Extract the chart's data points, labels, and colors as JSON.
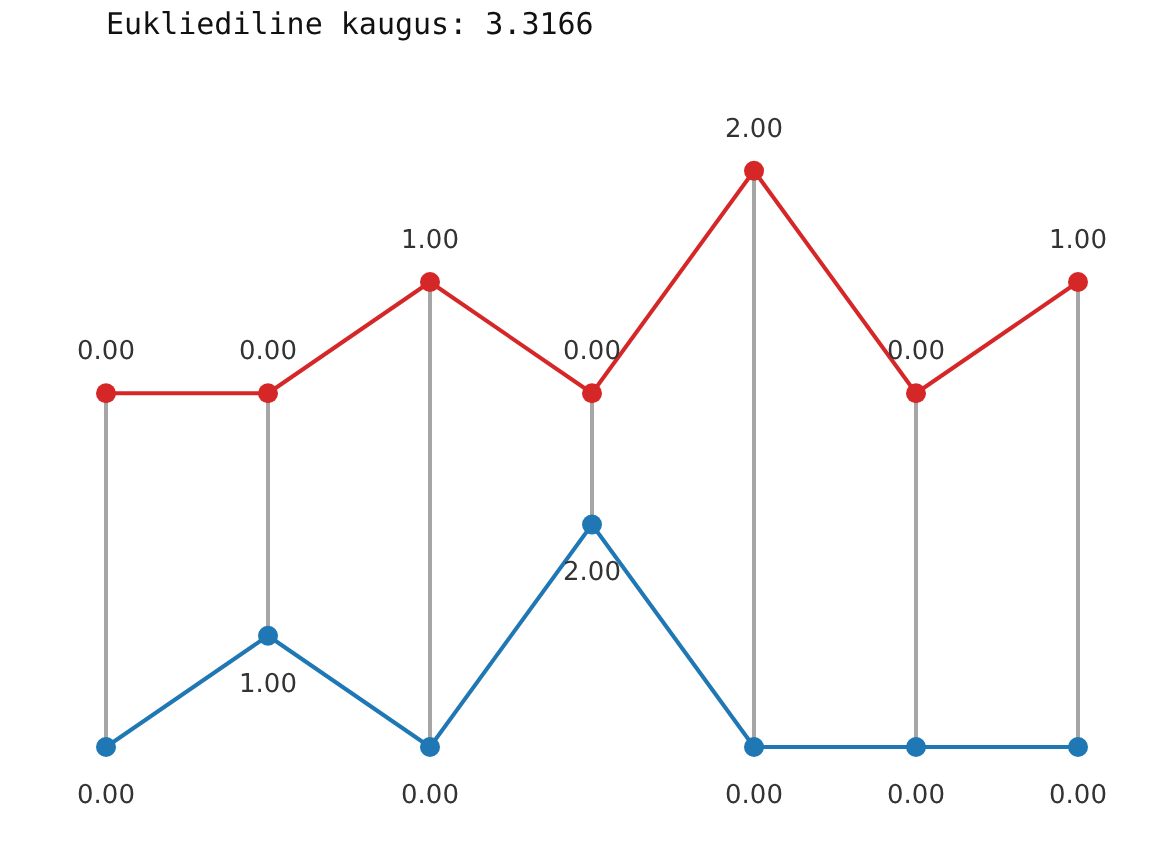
{
  "chart_data": [
    {
      "type": "line",
      "title": "Eukliediline kaugus: 3.3166",
      "categories": [
        null,
        null,
        null,
        null,
        null,
        null,
        null
      ],
      "series": [
        {
          "color": "#d62728",
          "values": [
            0,
            0,
            1,
            0,
            2,
            0,
            1
          ],
          "value_labels": [
            "0.00",
            "0.00",
            "1.00",
            "0.00",
            "2.00",
            "0.00",
            "1.00"
          ]
        }
      ],
      "tick_labels": false,
      "legend": false,
      "marker": "circle",
      "line_style": "solid"
    },
    {
      "type": "line",
      "categories": [
        null,
        null,
        null,
        null,
        null,
        null,
        null
      ],
      "series": [
        {
          "color": "#1f77b4",
          "values": [
            0,
            1,
            0,
            2,
            0,
            0,
            0
          ],
          "value_labels": [
            "0.00",
            "1.00",
            "0.00",
            "2.00",
            "0.00",
            "0.00",
            "0.00"
          ]
        }
      ],
      "tick_labels": false,
      "legend": false,
      "marker": "circle",
      "line_style": "solid"
    }
  ]
}
